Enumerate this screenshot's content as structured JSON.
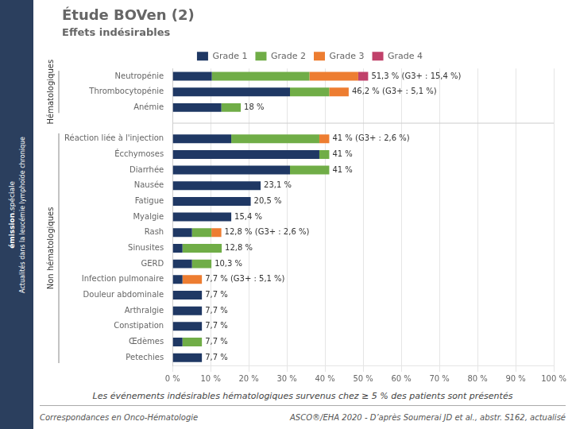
{
  "chart_data": {
    "type": "bar",
    "orientation": "horizontal",
    "stacked": true,
    "title": "Étude BOVen (2)",
    "subtitle": "Effets indésirables",
    "categories": [
      "Neutropénie",
      "Thrombocytopénie",
      "Anémie",
      null,
      "Réaction liée à l'injection",
      "Écchymoses",
      "Diarrhée",
      "Nausée",
      "Fatigue",
      "Myalgie",
      "Rash",
      "Sinusites",
      "GERD",
      "Infection pulmonaire",
      "Douleur abdominale",
      "Arthralgie",
      "Constipation",
      "Œdèmes",
      "Petechies"
    ],
    "series": [
      {
        "name": "Grade 1",
        "color": "#1f3864",
        "values": [
          10.3,
          30.8,
          12.8,
          0,
          15.4,
          38.5,
          30.8,
          23.1,
          20.5,
          15.4,
          5.1,
          2.6,
          5.1,
          2.6,
          7.7,
          7.7,
          7.7,
          2.6,
          7.7
        ]
      },
      {
        "name": "Grade 2",
        "color": "#70ad47",
        "values": [
          25.6,
          10.3,
          5.1,
          0,
          23.1,
          2.6,
          10.3,
          0,
          0,
          0,
          5.1,
          10.3,
          5.1,
          0,
          0,
          0,
          0,
          5.1,
          0
        ]
      },
      {
        "name": "Grade 3",
        "color": "#ed7d31",
        "values": [
          12.8,
          5.1,
          0,
          0,
          2.6,
          0,
          0,
          0,
          0,
          0,
          2.6,
          0,
          0,
          5.1,
          0,
          0,
          0,
          0,
          0
        ]
      },
      {
        "name": "Grade 4",
        "color": "#c0416a",
        "values": [
          2.6,
          0,
          0,
          0,
          0,
          0,
          0,
          0,
          0,
          0,
          0,
          0,
          0,
          0,
          0,
          0,
          0,
          0,
          0
        ]
      }
    ],
    "bar_labels": [
      "51,3 % (G3+ : 15,4 %)",
      "46,2 % (G3+ : 5,1 %)",
      "18 %",
      null,
      "41 % (G3+ : 2,6 %)",
      "41 %",
      "41 %",
      "23,1 %",
      "20,5 %",
      "15,4 %",
      "12,8 % (G3+ : 2,6 %)",
      "12,8 %",
      "10,3 %",
      "7,7 % (G3+ : 5,1 %)",
      "7,7 %",
      "7,7 %",
      "7,7 %",
      "7,7 %",
      "7,7 %"
    ],
    "sections": [
      {
        "label": "Hématologiques",
        "first": "Neutropénie",
        "last": "Anémie"
      },
      {
        "label": "Non hématologiques",
        "first": "Réaction liée à l'injection",
        "last": "Petechies"
      }
    ],
    "xlim": [
      0,
      100
    ],
    "xticks": [
      {
        "value": 0,
        "label": "0 %"
      },
      {
        "value": 10,
        "label": "10 %"
      },
      {
        "value": 20,
        "label": "20 %"
      },
      {
        "value": 30,
        "label": "30 %"
      },
      {
        "value": 40,
        "label": "40 %"
      },
      {
        "value": 50,
        "label": "50 %"
      },
      {
        "value": 60,
        "label": "60 %"
      },
      {
        "value": 70,
        "label": "70 %"
      },
      {
        "value": 80,
        "label": "80 %"
      },
      {
        "value": 90,
        "label": "90 %"
      },
      {
        "value": 100,
        "label": "100 %"
      }
    ],
    "grid": true,
    "legend": "top",
    "footnote": "Les événements indésirables hématologiques survenus chez ≥ 5 % des patients sont présentés",
    "footer": [
      "Correspondances en Onco-Hématologie",
      "ASCO®/EHA 2020 - D’après Soumerai JD et al., abstr. S162, actualisé"
    ],
    "sidebar": [
      "émission",
      ".spéciale",
      "Actualités dans la leucémie lymphoïde chronique"
    ]
  }
}
